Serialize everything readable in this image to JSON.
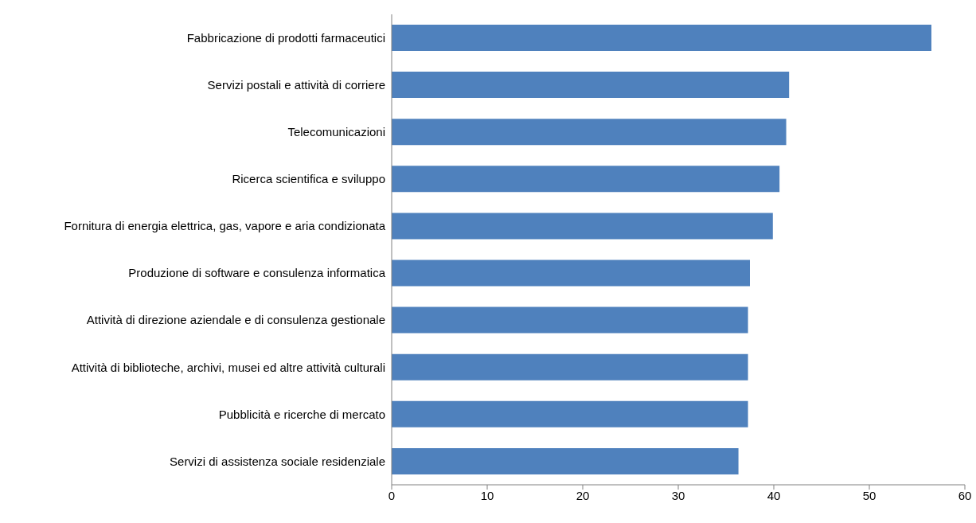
{
  "chart_data": {
    "type": "bar",
    "orientation": "horizontal",
    "categories": [
      "Fabbricazione di prodotti farmaceutici",
      "Servizi postali e attività di corriere",
      "Telecomunicazioni",
      "Ricerca scientifica e sviluppo",
      "Fornitura di energia elettrica, gas, vapore e aria condizionata",
      "Produzione di software e consulenza informatica",
      "Attività di direzione aziendale e di consulenza gestionale",
      "Attività di biblioteche, archivi, musei ed altre attività culturali",
      "Pubblicità e ricerche di mercato",
      "Servizi di assistenza sociale residenziale"
    ],
    "values": [
      56.5,
      41.6,
      41.3,
      40.6,
      39.9,
      37.5,
      37.3,
      37.3,
      37.3,
      36.3
    ],
    "color": "#4f81bd",
    "xlim": [
      0,
      60
    ],
    "xticks": [
      0,
      10,
      20,
      30,
      40,
      50,
      60
    ],
    "grid": false
  }
}
